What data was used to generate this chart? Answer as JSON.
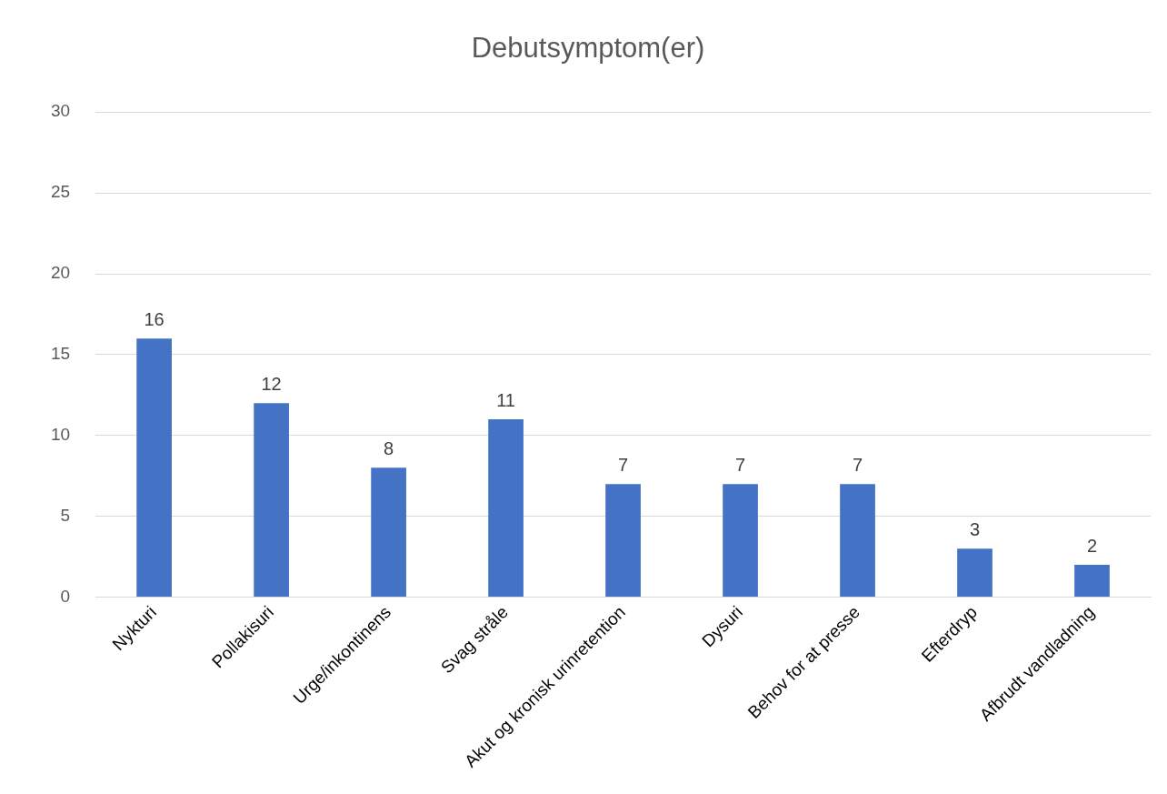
{
  "chart_data": {
    "type": "bar",
    "title": "Debutsymptom(er)",
    "categories": [
      "Nykturi",
      "Pollakisuri",
      "Urge/inkontinens",
      "Svag stråle",
      "Akut og kronisk urinretention",
      "Dysuri",
      "Behov for at presse",
      "Efterdryp",
      "Afbrudt vandladning"
    ],
    "values": [
      16,
      12,
      8,
      11,
      7,
      7,
      7,
      3,
      2
    ],
    "color": "#4472c4",
    "data_labels": true,
    "ylim": [
      0,
      30
    ],
    "yticks": [
      0,
      5,
      10,
      15,
      20,
      25,
      30
    ],
    "grid": "y",
    "legend": false
  }
}
